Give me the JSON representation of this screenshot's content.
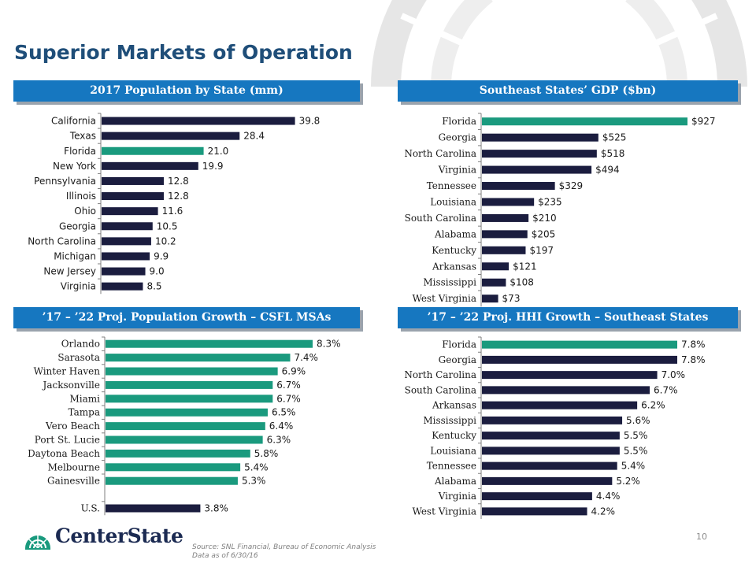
{
  "title": "Superior Markets of Operation",
  "colors": {
    "navy": "#1b1d3f",
    "teal": "#1a9a7e",
    "header": "#1677c0",
    "title": "#1f4e79"
  },
  "logo": {
    "text": "CenterState"
  },
  "page_number": "10",
  "source": "Source: SNL Financial, Bureau of Economic Analysis",
  "data_as_of": "Data as of 6/30/16",
  "chart_data": [
    {
      "id": "pop",
      "type": "bar",
      "orientation": "horizontal",
      "title": "2017 Population by State (mm)",
      "categories": [
        "California",
        "Texas",
        "Florida",
        "New York",
        "Pennsylvania",
        "Illinois",
        "Ohio",
        "Georgia",
        "North Carolina",
        "Michigan",
        "New Jersey",
        "Virginia"
      ],
      "values": [
        39.8,
        28.4,
        21.0,
        19.9,
        12.8,
        12.8,
        11.6,
        10.5,
        10.2,
        9.9,
        9.0,
        8.5
      ],
      "labels": [
        "39.8",
        "28.4",
        "21.0",
        "19.9",
        "12.8",
        "12.8",
        "11.6",
        "10.5",
        "10.2",
        "9.9",
        "9.0",
        "8.5"
      ],
      "highlight": [
        "Florida"
      ],
      "xlim": [
        0,
        41
      ]
    },
    {
      "id": "gdp",
      "type": "bar",
      "orientation": "horizontal",
      "title": "Southeast States’ GDP ($bn)",
      "categories": [
        "Florida",
        "Georgia",
        "North Carolina",
        "Virginia",
        "Tennessee",
        "Louisiana",
        "South Carolina",
        "Alabama",
        "Kentucky",
        "Arkansas",
        "Mississippi",
        "West Virginia"
      ],
      "values": [
        927,
        525,
        518,
        494,
        329,
        235,
        210,
        205,
        197,
        121,
        108,
        73
      ],
      "labels": [
        "$927",
        "$525",
        "$518",
        "$494",
        "$329",
        "$235",
        "$210",
        "$205",
        "$197",
        "$121",
        "$108",
        "$73"
      ],
      "highlight": [
        "Florida"
      ],
      "xlim": [
        0,
        927
      ]
    },
    {
      "id": "msa",
      "type": "bar",
      "orientation": "horizontal",
      "title": "’17 – ’22 Proj. Population Growth – CSFL MSAs",
      "categories": [
        "Orlando",
        "Sarasota",
        "Winter Haven",
        "Jacksonville",
        "Miami",
        "Tampa",
        "Vero Beach",
        "Port St. Lucie",
        "Daytona Beach",
        "Melbourne",
        "Gainesville",
        "",
        "U.S."
      ],
      "values": [
        8.3,
        7.4,
        6.9,
        6.7,
        6.7,
        6.5,
        6.4,
        6.3,
        5.8,
        5.4,
        5.3,
        null,
        3.8
      ],
      "labels": [
        "8.3%",
        "7.4%",
        "6.9%",
        "6.7%",
        "6.7%",
        "6.5%",
        "6.4%",
        "6.3%",
        "5.8%",
        "5.4%",
        "5.3%",
        "",
        "3.8%"
      ],
      "highlight": [
        "Orlando",
        "Sarasota",
        "Winter Haven",
        "Jacksonville",
        "Miami",
        "Tampa",
        "Vero Beach",
        "Port St. Lucie",
        "Daytona Beach",
        "Melbourne",
        "Gainesville"
      ],
      "xlim": [
        0,
        8.3
      ]
    },
    {
      "id": "hhi",
      "type": "bar",
      "orientation": "horizontal",
      "title": "’17 – ’22 Proj. HHI Growth – Southeast States",
      "categories": [
        "Florida",
        "Georgia",
        "North Carolina",
        "South Carolina",
        "Arkansas",
        "Mississippi",
        "Kentucky",
        "Louisiana",
        "Tennessee",
        "Alabama",
        "Virginia",
        "West Virginia"
      ],
      "values": [
        7.8,
        7.8,
        7.0,
        6.7,
        6.2,
        5.6,
        5.5,
        5.5,
        5.4,
        5.2,
        4.4,
        4.2
      ],
      "labels": [
        "7.8%",
        "7.8%",
        "7.0%",
        "6.7%",
        "6.2%",
        "5.6%",
        "5.5%",
        "5.5%",
        "5.4%",
        "5.2%",
        "4.4%",
        "4.2%"
      ],
      "highlight": [
        "Florida"
      ],
      "xlim": [
        0,
        7.8
      ]
    }
  ]
}
